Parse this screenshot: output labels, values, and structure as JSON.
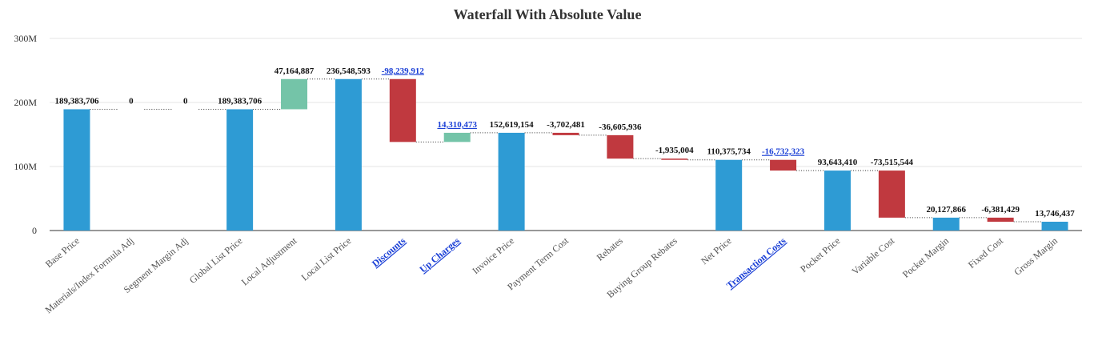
{
  "chart_data": {
    "type": "waterfall",
    "title": "Waterfall With Absolute Value",
    "categories": [
      "Base Price",
      "Materials/Index Formula Adj",
      "Segment Margin Adj",
      "Global List Price",
      "Local Adjustment",
      "Local List Price",
      "Discounts",
      "Up Charges",
      "Invoice Price",
      "Payment Term Cost",
      "Rebates",
      "Buying Group Rebates",
      "Net Price",
      "Transaction Costs",
      "Pocket Price",
      "Variable Cost",
      "Pocket Margin",
      "Fixed Cost",
      "Gross Margin"
    ],
    "values": [
      189383706,
      0,
      0,
      189383706,
      47164887,
      236548593,
      -98239912,
      14310473,
      152619154,
      -3702481,
      -36605936,
      -1935004,
      110375734,
      -16732323,
      93643410,
      -73515544,
      20127866,
      -6381429,
      13746437
    ],
    "value_labels": [
      "189,383,706",
      "0",
      "0",
      "189,383,706",
      "47,164,887",
      "236,548,593",
      "-98,239,912",
      "14,310,473",
      "152,619,154",
      "-3,702,481",
      "-36,605,936",
      "-1,935,004",
      "110,375,734",
      "-16,732,323",
      "93,643,410",
      "-73,515,544",
      "20,127,866",
      "-6,381,429",
      "13,746,437"
    ],
    "totals": [
      true,
      false,
      false,
      true,
      false,
      true,
      false,
      false,
      true,
      false,
      false,
      false,
      true,
      false,
      true,
      false,
      true,
      false,
      true
    ],
    "links": [
      false,
      false,
      false,
      false,
      false,
      false,
      true,
      true,
      false,
      false,
      false,
      false,
      false,
      true,
      false,
      false,
      false,
      false,
      false
    ],
    "colors": {
      "total": "#2e9bd4",
      "increase": "#74c4a8",
      "decrease": "#c0393f"
    },
    "ylim": [
      0,
      300000000
    ],
    "yticks": [
      0,
      {
        "value": 100000000,
        "label": "100M"
      },
      {
        "value": 200000000,
        "label": "200M"
      },
      {
        "value": 300000000,
        "label": "300M"
      }
    ],
    "grid": true
  }
}
